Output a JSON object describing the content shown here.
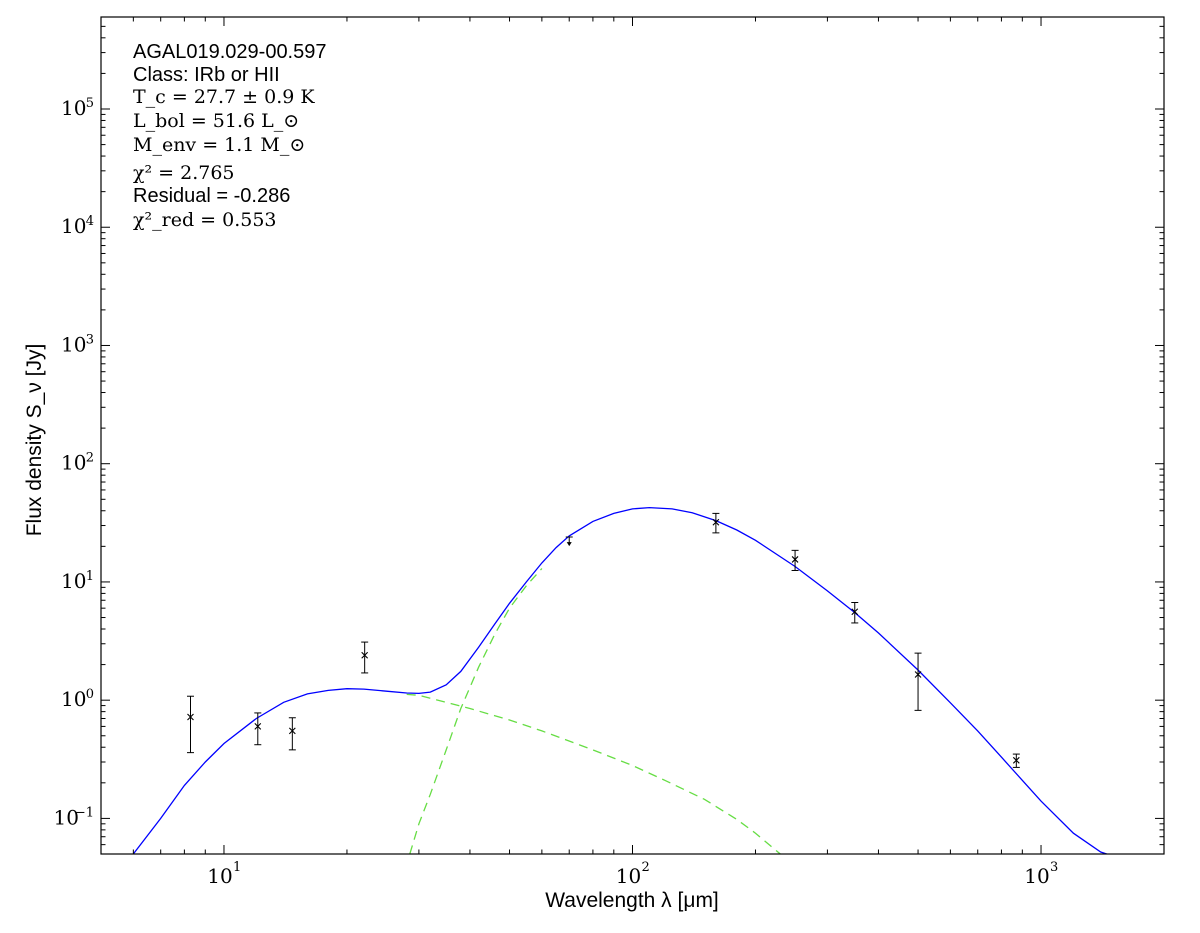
{
  "chart_data": {
    "type": "scatter",
    "xlabel": "Wavelength λ [μm]",
    "ylabel": "Flux density S_ν [Jy]",
    "xscale": "log",
    "yscale": "log",
    "xlim": [
      5,
      2000
    ],
    "ylim": [
      0.05,
      600000
    ],
    "xticks": [
      {
        "value": 10,
        "label": "10",
        "exp": "1"
      },
      {
        "value": 100,
        "label": "10",
        "exp": "2"
      },
      {
        "value": 1000,
        "label": "10",
        "exp": "3"
      }
    ],
    "yticks": [
      {
        "value": 0.1,
        "label": "10",
        "exp": "−1"
      },
      {
        "value": 1,
        "label": "10",
        "exp": "0"
      },
      {
        "value": 10,
        "label": "10",
        "exp": "1"
      },
      {
        "value": 100,
        "label": "10",
        "exp": "2"
      },
      {
        "value": 1000,
        "label": "10",
        "exp": "3"
      },
      {
        "value": 10000,
        "label": "10",
        "exp": "4"
      },
      {
        "value": 100000,
        "label": "10",
        "exp": "5"
      }
    ],
    "grid": false,
    "legend": "none",
    "annotations": {
      "source": "AGAL019.029-00.597",
      "class": "Class: IRb or HII",
      "tc": "T_c = 27.7 ± 0.9 K",
      "lbol": "L_bol = 51.6 L_⊙",
      "menv": "M_env = 1.1 M_⊙",
      "chi2": "χ² = 2.765",
      "residual": "Residual = -0.286",
      "chi2red": "χ²_red = 0.553"
    },
    "measurements": [
      {
        "x": 8.28,
        "y": 0.72,
        "yerr_low": 0.36,
        "yerr_high": 1.08
      },
      {
        "x": 12.1,
        "y": 0.6,
        "yerr_low": 0.42,
        "yerr_high": 0.78
      },
      {
        "x": 14.7,
        "y": 0.55,
        "yerr_low": 0.38,
        "yerr_high": 0.71
      },
      {
        "x": 22.1,
        "y": 2.4,
        "yerr_low": 1.7,
        "yerr_high": 3.1
      },
      {
        "x": 160,
        "y": 32,
        "yerr_low": 26,
        "yerr_high": 38
      },
      {
        "x": 250,
        "y": 15.5,
        "yerr_low": 12.5,
        "yerr_high": 18.5
      },
      {
        "x": 350,
        "y": 5.6,
        "yerr_low": 4.5,
        "yerr_high": 6.7
      },
      {
        "x": 500,
        "y": 1.65,
        "yerr_low": 0.82,
        "yerr_high": 2.5
      },
      {
        "x": 870,
        "y": 0.31,
        "yerr_low": 0.27,
        "yerr_high": 0.35
      }
    ],
    "upper_limits": [
      {
        "x": 70,
        "y": 24,
        "bar_low": 20.5
      }
    ],
    "series": [
      {
        "kind": "total-fit",
        "color": "#0000ff",
        "style": "solid",
        "x": [
          6,
          7,
          8,
          9,
          10,
          12,
          14,
          16,
          18,
          20,
          22,
          25,
          28,
          30,
          32,
          35,
          38,
          42,
          46,
          50,
          55,
          60,
          65,
          70,
          80,
          90,
          100,
          110,
          125,
          140,
          160,
          180,
          200,
          250,
          300,
          350,
          400,
          500,
          600,
          700,
          800,
          900,
          1000,
          1200,
          1400,
          1500
        ],
        "y": [
          0.05,
          0.1,
          0.19,
          0.3,
          0.43,
          0.7,
          0.96,
          1.13,
          1.21,
          1.25,
          1.24,
          1.19,
          1.15,
          1.14,
          1.17,
          1.35,
          1.75,
          2.8,
          4.4,
          6.6,
          10,
          14.5,
          19.5,
          24.5,
          32.5,
          38,
          41.5,
          42.5,
          41.5,
          38.5,
          33,
          27.5,
          22.5,
          13.5,
          8.4,
          5.5,
          3.7,
          1.8,
          0.95,
          0.55,
          0.33,
          0.21,
          0.14,
          0.075,
          0.052,
          0.048
        ]
      },
      {
        "kind": "warm-component",
        "color": "#66dd44",
        "style": "dashed",
        "x": [
          28,
          30,
          35,
          40,
          50,
          60,
          80,
          100,
          120,
          150,
          180,
          200,
          230
        ],
        "y": [
          1.12,
          1.1,
          0.96,
          0.85,
          0.68,
          0.55,
          0.38,
          0.28,
          0.21,
          0.145,
          0.098,
          0.075,
          0.05
        ]
      },
      {
        "kind": "cold-component",
        "color": "#66dd44",
        "style": "dashed",
        "x": [
          28.5,
          30,
          32,
          35,
          38,
          42,
          46,
          50,
          55,
          60
        ],
        "y": [
          0.05,
          0.09,
          0.16,
          0.38,
          0.85,
          1.9,
          3.6,
          6.0,
          9.3,
          13.0
        ]
      }
    ]
  }
}
